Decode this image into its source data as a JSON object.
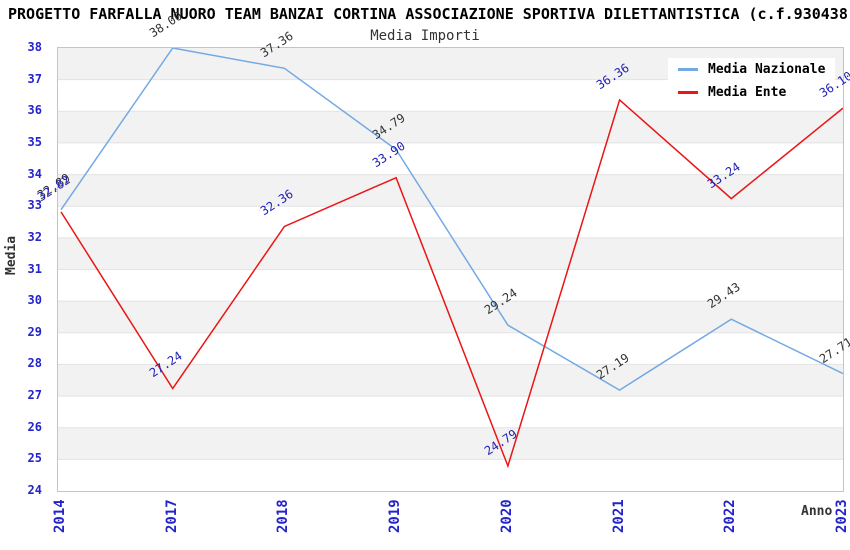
{
  "title": "PROGETTO FARFALLA NUORO TEAM BANZAI CORTINA ASSOCIAZIONE SPORTIVA DILETTANTISTICA (c.f.930438",
  "subtitle": "Media Importi",
  "xlabel": "Anno",
  "ylabel": "Media",
  "chart_data": {
    "type": "line",
    "categories": [
      "2014",
      "2017",
      "2018",
      "2019",
      "2020",
      "2021",
      "2022",
      "2023"
    ],
    "series": [
      {
        "name": "Media Nazionale",
        "color": "#74A9E3",
        "label_color": "#333333",
        "values": [
          32.89,
          38.0,
          37.36,
          34.79,
          29.24,
          27.19,
          29.43,
          27.71
        ]
      },
      {
        "name": "Media Ente",
        "color": "#EA1515",
        "label_color": "#2222B8",
        "values": [
          32.82,
          27.24,
          32.36,
          33.9,
          24.79,
          36.36,
          33.24,
          36.1
        ]
      }
    ],
    "title": "PROGETTO FARFALLA NUORO TEAM BANZAI CORTINA ASSOCIAZIONE SPORTIVA DILETTANTISTICA (c.f.930438",
    "subtitle": "Media Importi",
    "xlabel": "Anno",
    "ylabel": "Media",
    "ylim": [
      24,
      38
    ],
    "ytick_step": 1,
    "grid": "horizontal-bands",
    "band_colors": [
      "#F2F2F2",
      "#FFFFFF"
    ],
    "gridline_color": "#E3E3E3",
    "axis_tick_color": "#2424CC",
    "legend_position": "top-right",
    "value_label_decimals": 2
  },
  "legend": {
    "items": [
      {
        "label": "Media Nazionale"
      },
      {
        "label": "Media Ente"
      }
    ]
  }
}
